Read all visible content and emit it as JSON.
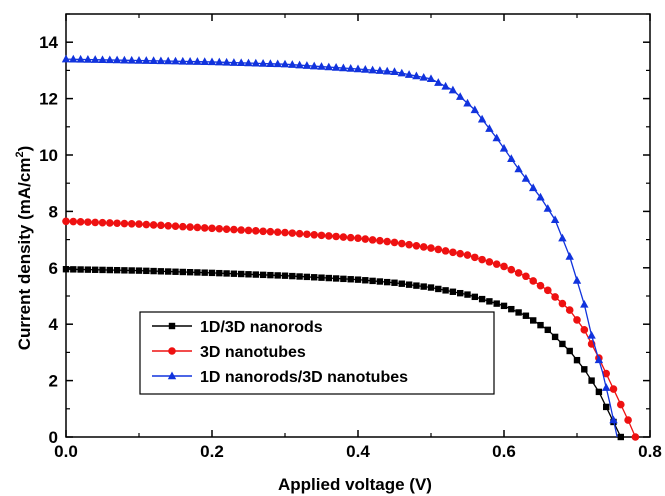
{
  "chart_data": {
    "type": "line",
    "xlabel": "Applied voltage (V)",
    "ylabel": {
      "main": "Current density (mA/cm",
      "sup": "2",
      "close": ")"
    },
    "xlim": [
      0.0,
      0.8
    ],
    "ylim": [
      0,
      15
    ],
    "x_ticks": [
      "0.0",
      "0.2",
      "0.4",
      "0.6",
      "0.8"
    ],
    "y_ticks": [
      "0",
      "2",
      "4",
      "6",
      "8",
      "10",
      "12",
      "14"
    ],
    "grid": false,
    "legend_position": "bottom-left",
    "series": [
      {
        "name": "1D/3D nanorods",
        "color": "#000000",
        "marker": "square",
        "points": [
          [
            0.0,
            5.95
          ],
          [
            0.1,
            5.9
          ],
          [
            0.2,
            5.82
          ],
          [
            0.3,
            5.72
          ],
          [
            0.4,
            5.58
          ],
          [
            0.45,
            5.47
          ],
          [
            0.5,
            5.3
          ],
          [
            0.55,
            5.05
          ],
          [
            0.6,
            4.65
          ],
          [
            0.63,
            4.3
          ],
          [
            0.66,
            3.8
          ],
          [
            0.69,
            3.05
          ],
          [
            0.71,
            2.4
          ],
          [
            0.73,
            1.6
          ],
          [
            0.745,
            0.8
          ],
          [
            0.76,
            0.0
          ]
        ]
      },
      {
        "name": "3D nanotubes",
        "color": "#ee1111",
        "marker": "circle",
        "points": [
          [
            0.0,
            7.65
          ],
          [
            0.1,
            7.55
          ],
          [
            0.2,
            7.4
          ],
          [
            0.3,
            7.25
          ],
          [
            0.4,
            7.05
          ],
          [
            0.45,
            6.9
          ],
          [
            0.5,
            6.7
          ],
          [
            0.55,
            6.45
          ],
          [
            0.6,
            6.05
          ],
          [
            0.63,
            5.7
          ],
          [
            0.66,
            5.2
          ],
          [
            0.69,
            4.5
          ],
          [
            0.71,
            3.8
          ],
          [
            0.73,
            2.8
          ],
          [
            0.75,
            1.7
          ],
          [
            0.77,
            0.6
          ],
          [
            0.78,
            0.0
          ]
        ]
      },
      {
        "name": "1D nanorods/3D nanotubes",
        "color": "#1133dd",
        "marker": "triangle",
        "points": [
          [
            0.0,
            13.4
          ],
          [
            0.1,
            13.35
          ],
          [
            0.2,
            13.3
          ],
          [
            0.3,
            13.22
          ],
          [
            0.4,
            13.05
          ],
          [
            0.45,
            12.95
          ],
          [
            0.5,
            12.7
          ],
          [
            0.53,
            12.3
          ],
          [
            0.56,
            11.6
          ],
          [
            0.59,
            10.6
          ],
          [
            0.62,
            9.5
          ],
          [
            0.65,
            8.5
          ],
          [
            0.67,
            7.7
          ],
          [
            0.69,
            6.4
          ],
          [
            0.71,
            4.7
          ],
          [
            0.72,
            3.6
          ],
          [
            0.735,
            2.3
          ],
          [
            0.745,
            1.2
          ],
          [
            0.755,
            0.0
          ]
        ]
      }
    ]
  }
}
